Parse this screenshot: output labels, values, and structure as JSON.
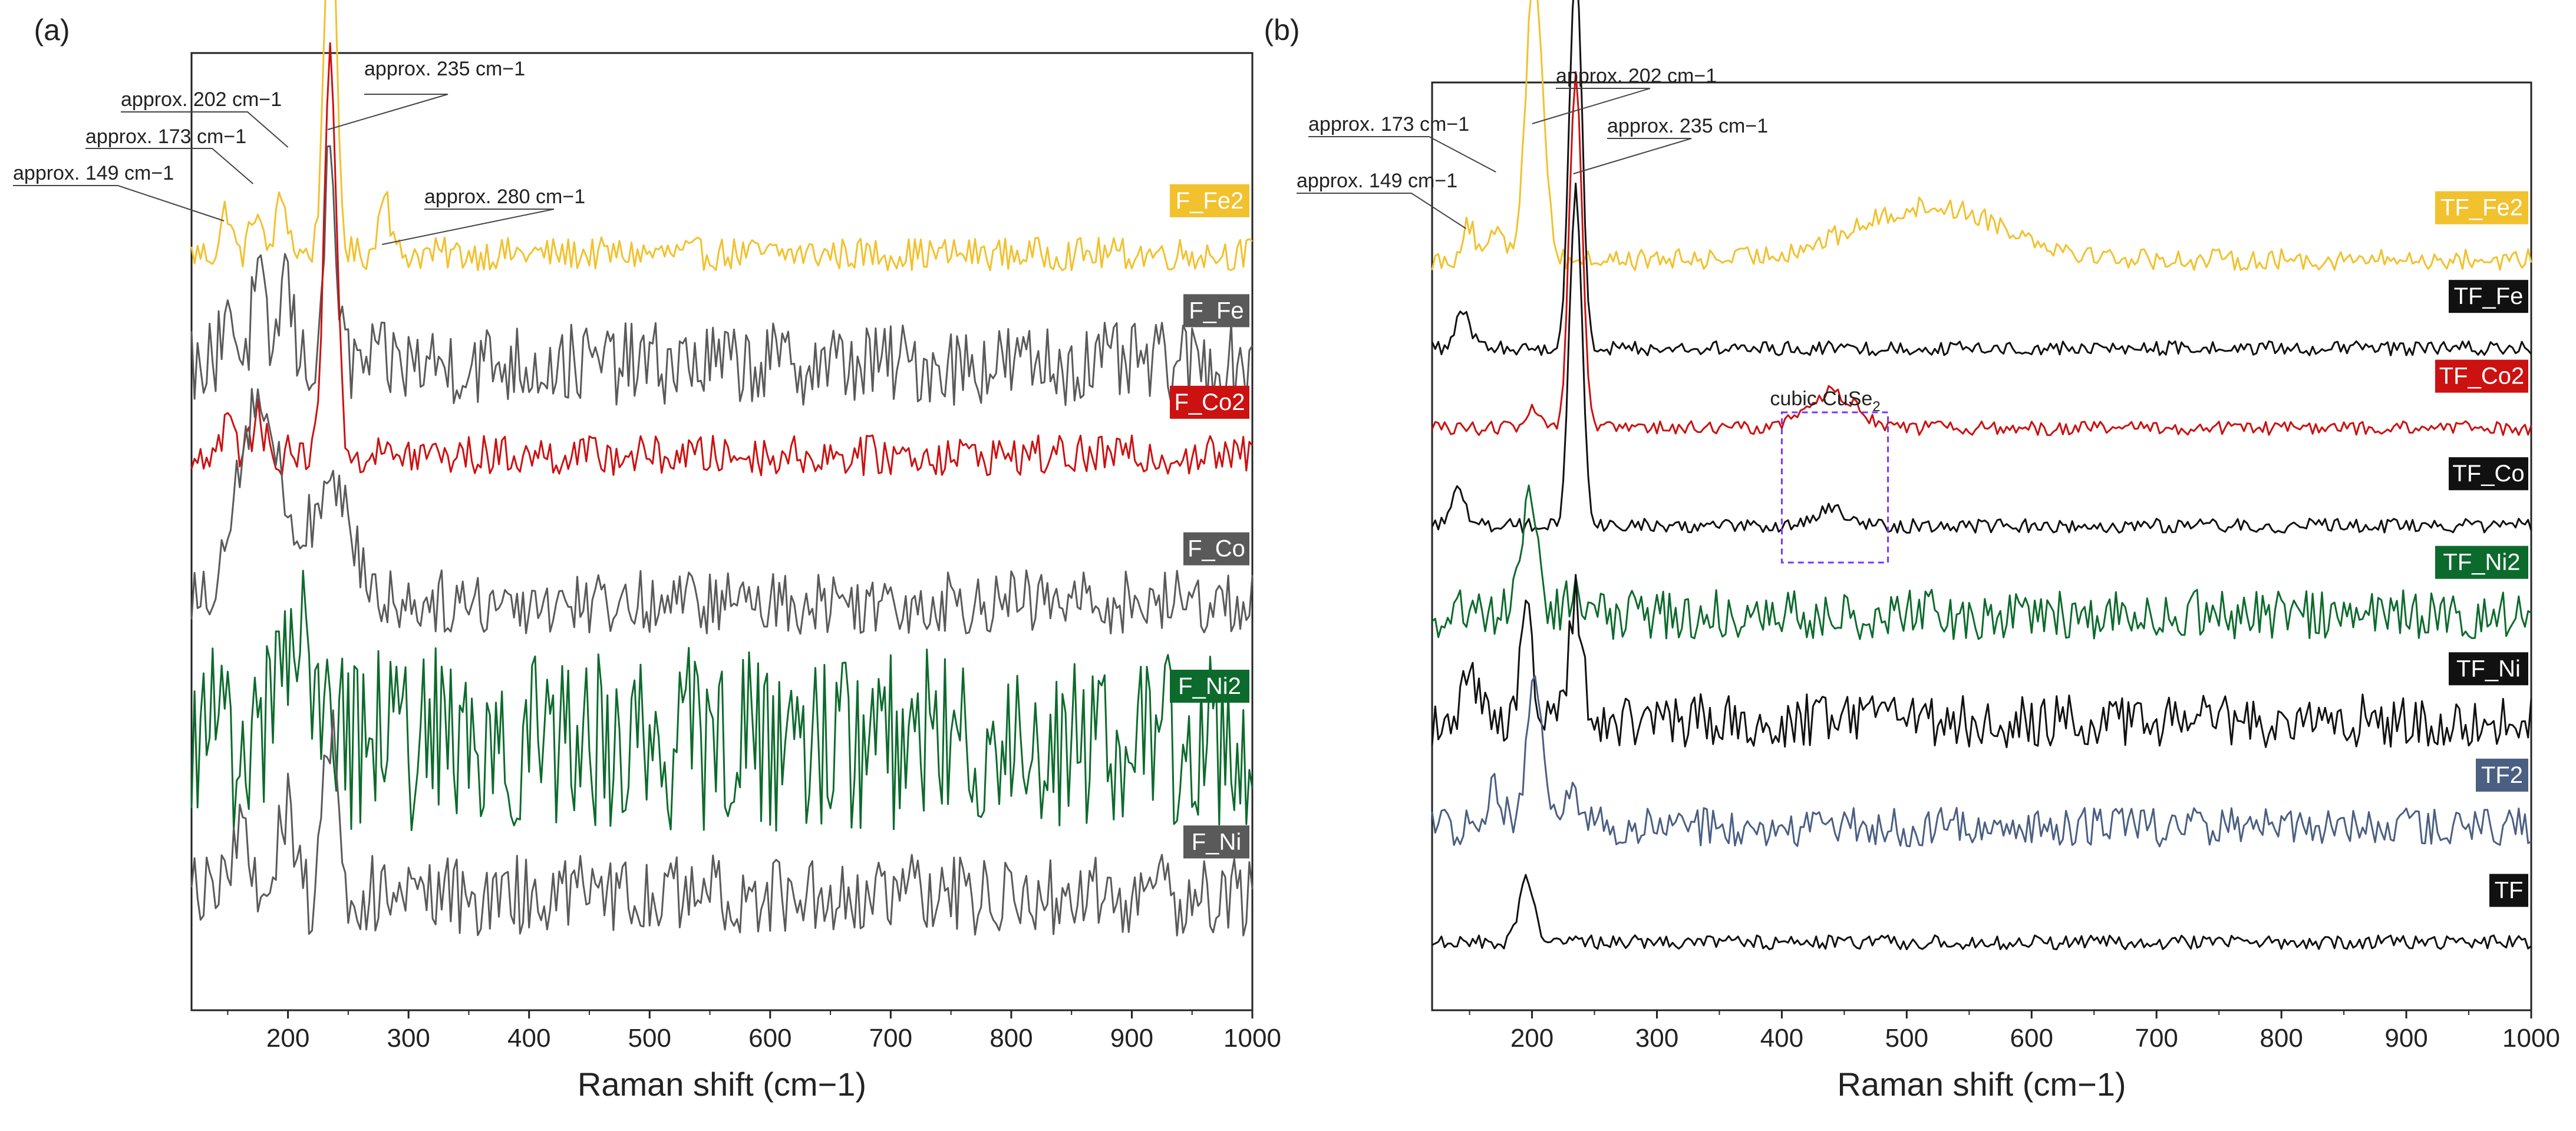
{
  "figure": {
    "panels": [
      "(a)",
      "(b)"
    ]
  },
  "chart_data": [
    {
      "type": "line",
      "panel": "(a)",
      "xlabel": "Raman shift (cm−1)",
      "xlim": [
        120,
        1000
      ],
      "x_ticks": [
        200,
        300,
        400,
        500,
        600,
        700,
        800,
        900,
        1000
      ],
      "y_ticks_shown": false,
      "annotations": [
        {
          "label": "approx. 149 cm−1",
          "x": 149
        },
        {
          "label": "approx. 173 cm−1",
          "x": 173
        },
        {
          "label": "approx. 202 cm−1",
          "x": 202
        },
        {
          "label": "approx. 235 cm−1",
          "x": 235
        },
        {
          "label": "approx. 280 cm−1",
          "x": 280
        }
      ],
      "series": [
        {
          "name": "F_Fe2",
          "color": "#f2c12e",
          "baseline": 0.8,
          "noise": 0.018,
          "peaks": [
            [
              149,
              0.05,
              4
            ],
            [
              173,
              0.05,
              4
            ],
            [
              195,
              0.06,
              5
            ],
            [
              235,
              0.4,
              5
            ],
            [
              280,
              0.08,
              4
            ]
          ]
        },
        {
          "name": "F_Fe",
          "color": "#5a5a5a",
          "baseline": 0.68,
          "noise": 0.045,
          "peaks": [
            [
              150,
              0.07,
              5
            ],
            [
              175,
              0.09,
              5
            ],
            [
              198,
              0.1,
              5
            ],
            [
              235,
              0.22,
              5
            ]
          ]
        },
        {
          "name": "F_Co2",
          "color": "#cc1111",
          "baseline": 0.58,
          "noise": 0.022,
          "peaks": [
            [
              150,
              0.04,
              5
            ],
            [
              175,
              0.04,
              5
            ],
            [
              235,
              0.45,
              5
            ]
          ]
        },
        {
          "name": "F_Co",
          "color": "#5a5a5a",
          "baseline": 0.42,
          "noise": 0.035,
          "peaks": [
            [
              175,
              0.22,
              18
            ],
            [
              235,
              0.12,
              18
            ]
          ]
        },
        {
          "name": "F_Ni2",
          "color": "#0c6b2c",
          "baseline": 0.27,
          "noise": 0.1,
          "peaks": [
            [
              195,
              0.12,
              6
            ],
            [
              210,
              0.14,
              6
            ]
          ]
        },
        {
          "name": "F_Ni",
          "color": "#5a5a5a",
          "baseline": 0.1,
          "noise": 0.045,
          "peaks": [
            [
              160,
              0.07,
              6
            ],
            [
              198,
              0.1,
              6
            ],
            [
              235,
              0.18,
              5
            ]
          ]
        }
      ]
    },
    {
      "type": "line",
      "panel": "(b)",
      "xlabel": "Raman shift (cm−1)",
      "xlim": [
        120,
        1000
      ],
      "x_ticks": [
        200,
        300,
        400,
        500,
        600,
        700,
        800,
        900,
        1000
      ],
      "y_ticks_shown": false,
      "annotations": [
        {
          "label": "approx. 149 cm−1",
          "x": 149
        },
        {
          "label": "approx. 173 cm−1",
          "x": 173
        },
        {
          "label": "approx. 202 cm−1",
          "x": 202
        },
        {
          "label": "approx. 235 cm−1",
          "x": 235
        }
      ],
      "region_box": {
        "label": "cubic CuSe",
        "label_subscript": "2",
        "x_range": [
          400,
          485
        ],
        "color": "#7a33ff"
      },
      "series": [
        {
          "name": "TF_Fe2",
          "color": "#f2c12e",
          "baseline": 0.82,
          "noise": 0.012,
          "peaks": [
            [
              149,
              0.04,
              5
            ],
            [
              173,
              0.04,
              5
            ],
            [
              202,
              0.32,
              7
            ],
            [
              520,
              0.06,
              60
            ]
          ]
        },
        {
          "name": "TF_Fe",
          "color": "#111111",
          "baseline": 0.72,
          "noise": 0.008,
          "peaks": [
            [
              145,
              0.04,
              6
            ],
            [
              235,
              0.44,
              5
            ]
          ]
        },
        {
          "name": "TF_Co2",
          "color": "#cc1111",
          "baseline": 0.63,
          "noise": 0.008,
          "peaks": [
            [
              200,
              0.02,
              5
            ],
            [
              235,
              0.4,
              5
            ],
            [
              440,
              0.04,
              20
            ]
          ]
        },
        {
          "name": "TF_Co",
          "color": "#111111",
          "baseline": 0.52,
          "noise": 0.008,
          "peaks": [
            [
              140,
              0.04,
              6
            ],
            [
              235,
              0.38,
              5
            ],
            [
              440,
              0.02,
              10
            ]
          ]
        },
        {
          "name": "TF_Ni2",
          "color": "#0c6b2c",
          "baseline": 0.42,
          "noise": 0.028,
          "peaks": [
            [
              198,
              0.15,
              6
            ],
            [
              235,
              0.03,
              5
            ]
          ]
        },
        {
          "name": "TF_Ni",
          "color": "#111111",
          "baseline": 0.3,
          "noise": 0.03,
          "peaks": [
            [
              150,
              0.05,
              6
            ],
            [
              196,
              0.12,
              5
            ],
            [
              235,
              0.14,
              5
            ]
          ]
        },
        {
          "name": "TF2",
          "color": "#4a5f82",
          "baseline": 0.18,
          "noise": 0.022,
          "peaks": [
            [
              170,
              0.05,
              6
            ],
            [
              202,
              0.18,
              6
            ],
            [
              235,
              0.03,
              8
            ]
          ]
        },
        {
          "name": "TF",
          "color": "#111111",
          "baseline": 0.05,
          "noise": 0.008,
          "peaks": [
            [
              196,
              0.07,
              6
            ]
          ]
        }
      ]
    }
  ]
}
